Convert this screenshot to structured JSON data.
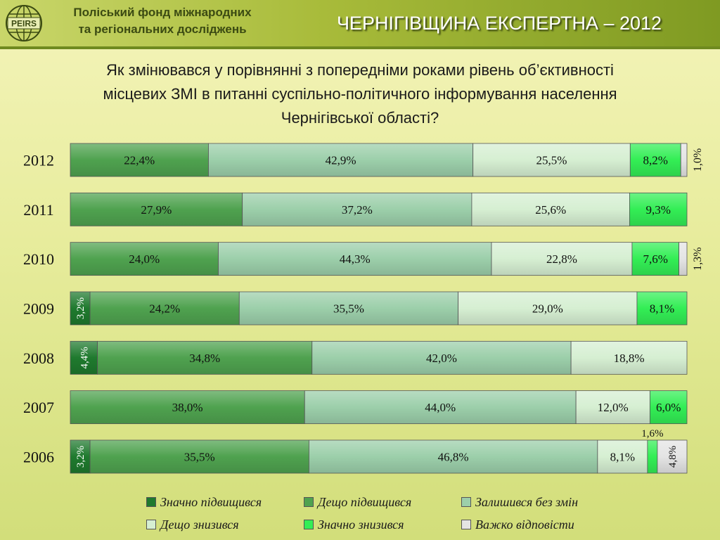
{
  "header": {
    "logo_text": "PEIRS",
    "org_line1": "Поліський фонд міжнародних",
    "org_line2": "та регіональних досліджень",
    "title": "ЧЕРНІГІВЩИНА ЕКСПЕРТНА – 2012"
  },
  "question": {
    "line1": "Як змінювався у порівнянні з попередніми роками рівень об’єктивності",
    "line2": "місцевих ЗМІ в питанні суспільно-політичного інформування населення",
    "line3": "Чернігівської області?"
  },
  "colors": {
    "s1": "#1f7a2e",
    "s2": "#4fa24f",
    "s3": "#9ccfaa",
    "s4": "#d6efd2",
    "s5": "#33ee55",
    "s6": "#e4e4e4"
  },
  "chart_data": {
    "type": "bar",
    "orientation": "horizontal",
    "stacked": true,
    "percent": true,
    "categories": [
      "2012",
      "2011",
      "2010",
      "2009",
      "2008",
      "2007",
      "2006"
    ],
    "series": [
      {
        "name": "Значно підвищився",
        "values": [
          0,
          0,
          0,
          3.2,
          4.4,
          0,
          3.2
        ],
        "labels": [
          "",
          "",
          "",
          "3,2%",
          "4,4%",
          "",
          "3,2%"
        ]
      },
      {
        "name": "Дещо підвищився",
        "values": [
          22.4,
          27.9,
          24.0,
          24.2,
          34.8,
          38.0,
          35.5
        ],
        "labels": [
          "22,4%",
          "27,9%",
          "24,0%",
          "24,2%",
          "34,8%",
          "38,0%",
          "35,5%"
        ]
      },
      {
        "name": "Залишився без змін",
        "values": [
          42.9,
          37.2,
          44.3,
          35.5,
          42.0,
          44.0,
          46.8
        ],
        "labels": [
          "42,9%",
          "37,2%",
          "44,3%",
          "35,5%",
          "42,0%",
          "44,0%",
          "46,8%"
        ]
      },
      {
        "name": "Дещо знизився",
        "values": [
          25.5,
          25.6,
          22.8,
          29.0,
          18.8,
          12.0,
          8.1
        ],
        "labels": [
          "25,5%",
          "25,6%",
          "22,8%",
          "29,0%",
          "18,8%",
          "12,0%",
          "8,1%"
        ]
      },
      {
        "name": "Значно знизився",
        "values": [
          8.2,
          9.3,
          7.6,
          8.1,
          0,
          6.0,
          1.6
        ],
        "labels": [
          "8,2%",
          "9,3%",
          "7,6%",
          "8,1%",
          "",
          "6,0%",
          "1,6%"
        ]
      },
      {
        "name": "Важко відповісти",
        "values": [
          1.0,
          0,
          1.3,
          0,
          0,
          0,
          4.8
        ],
        "labels": [
          "1,0%",
          "",
          "1,3%",
          "",
          "",
          "",
          "4,8%"
        ]
      }
    ],
    "xlim": [
      0,
      100
    ],
    "legend": "bottom"
  }
}
